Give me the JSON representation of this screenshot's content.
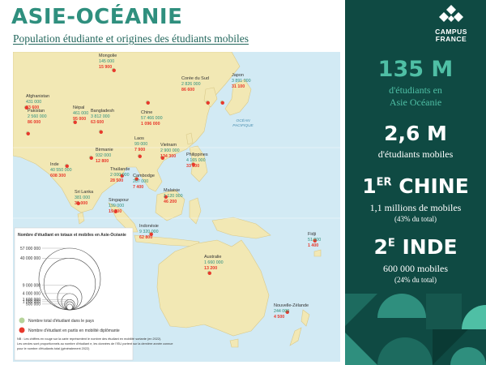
{
  "header": {
    "title": "ASIE-OCÉANIE",
    "subtitle": "Population étudiante et origines des étudiants mobiles"
  },
  "colors": {
    "green_circle": "#b6d39a",
    "red_circle": "#e8392c",
    "land": "#f2e8b4",
    "sea": "#d2eaf4",
    "panel": "#0f4a43",
    "accent": "#4fbfa5"
  },
  "countries": [
    {
      "name": "Mongolie",
      "total": "145 000",
      "mobile": "15 900"
    },
    {
      "name": "Corée du Sud",
      "total": "2 826 000",
      "mobile": "86 600"
    },
    {
      "name": "Japon",
      "total": "3 891 000",
      "mobile": "31 100"
    },
    {
      "name": "Afghanistan",
      "total": "431 000",
      "mobile": "33 600"
    },
    {
      "name": "Népal",
      "total": "461 000",
      "mobile": "95 000"
    },
    {
      "name": "Pakistan",
      "total": "2 560 000",
      "mobile": "86 000"
    },
    {
      "name": "Bangladesh",
      "total": "3 812 000",
      "mobile": "63 600"
    },
    {
      "name": "Chine",
      "total": "57 466 000",
      "mobile": "1 096 000"
    },
    {
      "name": "Laos",
      "total": "99 000",
      "mobile": "7 900"
    },
    {
      "name": "Birmanie",
      "total": "932 000",
      "mobile": "12 800"
    },
    {
      "name": "Vietnam",
      "total": "2 900 000",
      "mobile": "134 300"
    },
    {
      "name": "Inde",
      "total": "40 550 000",
      "mobile": "608 300"
    },
    {
      "name": "Philippines",
      "total": "4 165 000",
      "mobile": "33 100"
    },
    {
      "name": "Thaïlande",
      "total": "2 000 000",
      "mobile": "28 500"
    },
    {
      "name": "Cambodge",
      "total": "207 000",
      "mobile": "7 400"
    },
    {
      "name": "Sri Lanka",
      "total": "381 000",
      "mobile": "31 000"
    },
    {
      "name": "Malaisie",
      "total": "1 120 000",
      "mobile": "46 200"
    },
    {
      "name": "Singapour",
      "total": "199 000",
      "mobile": "19 700"
    },
    {
      "name": "Indonésie",
      "total": "9 320 000",
      "mobile": "62 800"
    },
    {
      "name": "Fidji",
      "total": "51 000",
      "mobile": "1 400"
    },
    {
      "name": "Australie",
      "total": "1 660 000",
      "mobile": "13 200"
    },
    {
      "name": "Nouvelle-Zélande",
      "total": "244 000",
      "mobile": "4 500"
    }
  ],
  "oceans": {
    "pacific": [
      "OCÉAN",
      "PACIFIQUE"
    ],
    "indian": [
      "OCÉAN",
      "INDIEN"
    ]
  },
  "legend": {
    "title": "Nombre d'étudiant en totaux et mobiles en Asie-Océanie",
    "scale_labels": [
      "57 000 000",
      "40 000 000",
      "9 000 000",
      "4 000 000",
      "1 600 000",
      "1 000 000",
      "500 000"
    ],
    "green_label": "Nombre total d'étudiant dans le pays",
    "red_label": "Nombre d'étudiant en partis en mobilité diplômante",
    "note_1": "NB : Les chiffres en rouge sur la carte représentent le nombre des étudiant en mobilité sortante (en 2022).",
    "note_2": "Les cercles sont proportionnels au nombre d'étudiant e, les données de l'ISU portent sur la dernière année connue",
    "note_3": "pour le nombre d'étudiants total (généralement 2022)"
  },
  "sidebar": {
    "logo_line1": "CAMPUS",
    "logo_line2": "FRANCE",
    "stat1_big": "135 M",
    "stat1_sub1": "d'étudiants en",
    "stat1_sub2": "Asie Océanie",
    "stat2_big": "2,6 M",
    "stat2_sub": "d'étudiants mobiles",
    "stat3_num": "1",
    "stat3_sup": "ER",
    "stat3_word": "CHINE",
    "stat3_sub": "1,1 millions de mobiles",
    "stat3_pct": "(43% du total)",
    "stat4_num": "2",
    "stat4_sup": "E",
    "stat4_word": "INDE",
    "stat4_sub": "600 000 mobiles",
    "stat4_pct": "(24% du total)"
  }
}
